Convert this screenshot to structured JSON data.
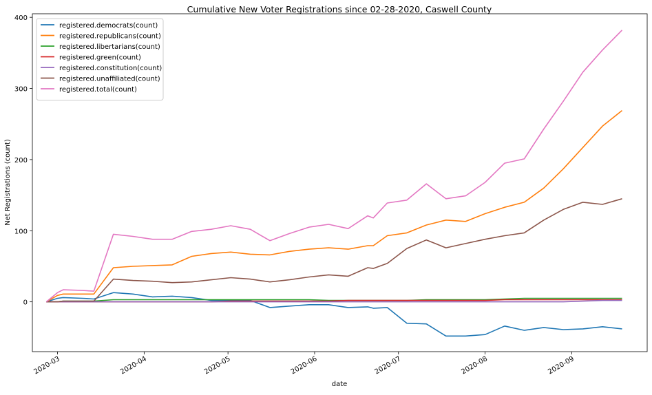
{
  "chart_data": {
    "type": "line",
    "title": "Cumulative New Voter Registrations since 02-28-2020, Caswell County",
    "xlabel": "date",
    "ylabel": "Net Registrations (count)",
    "xlim": [
      "2020-02-21",
      "2020-09-28"
    ],
    "ylim": [
      -70,
      405
    ],
    "x_ticks": [
      {
        "date": "2020-03-01",
        "label": "2020-03"
      },
      {
        "date": "2020-04-01",
        "label": "2020-04"
      },
      {
        "date": "2020-05-01",
        "label": "2020-05"
      },
      {
        "date": "2020-06-01",
        "label": "2020-06"
      },
      {
        "date": "2020-07-01",
        "label": "2020-07"
      },
      {
        "date": "2020-08-01",
        "label": "2020-08"
      },
      {
        "date": "2020-09-01",
        "label": "2020-09"
      }
    ],
    "y_ticks": [
      0,
      100,
      200,
      300,
      400
    ],
    "grid": false,
    "legend_position": "top-left",
    "x": [
      "2020-02-26",
      "2020-03-01",
      "2020-03-03",
      "2020-03-10",
      "2020-03-14",
      "2020-03-21",
      "2020-03-28",
      "2020-04-04",
      "2020-04-11",
      "2020-04-18",
      "2020-04-25",
      "2020-05-02",
      "2020-05-09",
      "2020-05-16",
      "2020-05-23",
      "2020-05-30",
      "2020-06-06",
      "2020-06-13",
      "2020-06-20",
      "2020-06-22",
      "2020-06-27",
      "2020-07-04",
      "2020-07-11",
      "2020-07-18",
      "2020-07-25",
      "2020-08-01",
      "2020-08-08",
      "2020-08-15",
      "2020-08-22",
      "2020-08-29",
      "2020-09-05",
      "2020-09-12",
      "2020-09-19"
    ],
    "series": [
      {
        "name": "registered.democrats(count)",
        "color": "#1f77b4",
        "values": [
          0,
          5,
          6,
          5,
          4,
          13,
          11,
          7,
          8,
          6,
          2,
          2,
          2,
          -8,
          -6,
          -4,
          -4,
          -8,
          -7,
          -9,
          -8,
          -30,
          -31,
          -48,
          -48,
          -46,
          -34,
          -40,
          -36,
          -39,
          -38,
          -35,
          -38
        ]
      },
      {
        "name": "registered.republicans(count)",
        "color": "#ff7f0e",
        "values": [
          0,
          9,
          11,
          11,
          11,
          48,
          50,
          51,
          52,
          64,
          68,
          70,
          67,
          66,
          71,
          74,
          76,
          74,
          79,
          79,
          93,
          97,
          108,
          115,
          113,
          124,
          133,
          140,
          160,
          187,
          217,
          247,
          269
        ]
      },
      {
        "name": "registered.libertarians(count)",
        "color": "#2ca02c",
        "values": [
          0,
          0,
          1,
          1,
          1,
          3,
          3,
          3,
          3,
          3,
          3,
          3,
          3,
          3,
          3,
          3,
          2,
          2,
          2,
          2,
          2,
          2,
          3,
          3,
          3,
          3,
          4,
          5,
          5,
          5,
          5,
          5,
          5
        ]
      },
      {
        "name": "registered.green(count)",
        "color": "#d62728",
        "values": [
          0,
          0,
          0,
          0,
          0,
          0,
          0,
          0,
          0,
          0,
          0,
          1,
          1,
          1,
          1,
          1,
          1,
          2,
          2,
          2,
          2,
          2,
          2,
          2,
          2,
          2,
          3,
          3,
          3,
          3,
          3,
          3,
          3
        ]
      },
      {
        "name": "registered.constitution(count)",
        "color": "#9467bd",
        "values": [
          0,
          0,
          0,
          0,
          0,
          0,
          0,
          0,
          0,
          0,
          0,
          0,
          0,
          0,
          0,
          0,
          0,
          0,
          0,
          0,
          0,
          0,
          0,
          0,
          0,
          0,
          0,
          0,
          0,
          0,
          1,
          2,
          2
        ]
      },
      {
        "name": "registered.unaffiliated(count)",
        "color": "#8c564b",
        "values": [
          0,
          0,
          1,
          1,
          1,
          32,
          30,
          29,
          27,
          28,
          31,
          34,
          32,
          28,
          31,
          35,
          38,
          36,
          48,
          47,
          54,
          75,
          87,
          76,
          82,
          88,
          93,
          97,
          115,
          130,
          140,
          137,
          145
        ]
      },
      {
        "name": "registered.total(count)",
        "color": "#e377c2",
        "values": [
          0,
          13,
          17,
          16,
          15,
          95,
          92,
          88,
          88,
          99,
          102,
          107,
          102,
          86,
          96,
          105,
          109,
          103,
          121,
          118,
          139,
          143,
          166,
          145,
          149,
          168,
          195,
          201,
          243,
          282,
          323,
          354,
          382
        ]
      }
    ]
  }
}
